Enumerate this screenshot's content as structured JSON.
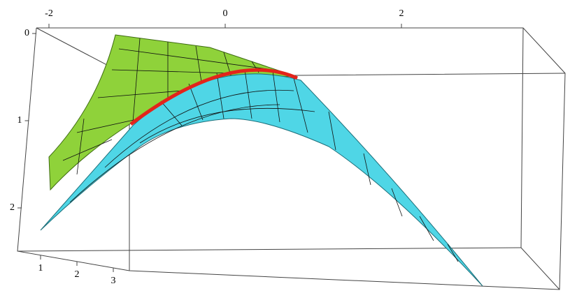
{
  "chart_data": {
    "type": "surface3d",
    "xticks": [
      -2,
      0,
      2
    ],
    "zticks": [
      0,
      1,
      2
    ],
    "yticks": [
      1,
      2,
      3
    ]
  }
}
